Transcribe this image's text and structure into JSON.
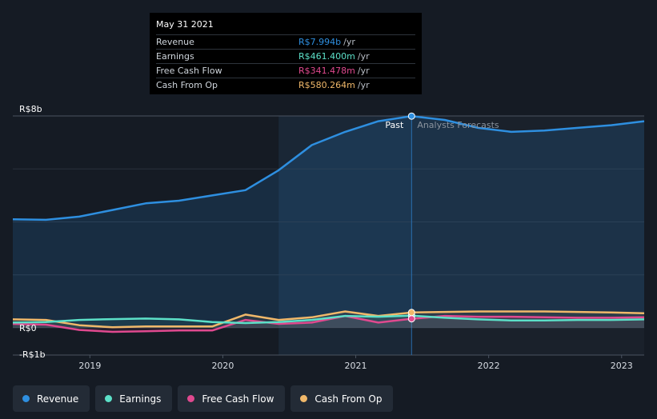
{
  "tooltip": {
    "date": "May 31 2021",
    "rows": [
      {
        "label": "Revenue",
        "value": "R$7.994b",
        "unit": "/yr",
        "color": "#2e8fe0"
      },
      {
        "label": "Earnings",
        "value": "R$461.400m",
        "unit": "/yr",
        "color": "#5ce0c8"
      },
      {
        "label": "Free Cash Flow",
        "value": "R$341.478m",
        "unit": "/yr",
        "color": "#e0498f"
      },
      {
        "label": "Cash From Op",
        "value": "R$580.264m",
        "unit": "/yr",
        "color": "#f0b86a"
      }
    ]
  },
  "legend": [
    {
      "label": "Revenue",
      "color": "#2e8fe0"
    },
    {
      "label": "Earnings",
      "color": "#5ce0c8"
    },
    {
      "label": "Free Cash Flow",
      "color": "#e0498f"
    },
    {
      "label": "Cash From Op",
      "color": "#f0b86a"
    }
  ],
  "chart_data": {
    "type": "line",
    "title": "",
    "xlabel": "",
    "ylabel": "",
    "currency": "R$",
    "unit": "billions",
    "ylim": [
      -1,
      8
    ],
    "xlim": [
      2018.42,
      2023.17
    ],
    "y_tick_labels": [
      {
        "value": 8,
        "label": "R$8b"
      },
      {
        "value": 0,
        "label": "R$0"
      },
      {
        "value": -1,
        "label": "-R$1b"
      }
    ],
    "x_ticks": [
      {
        "value": 2019,
        "label": "2019"
      },
      {
        "value": 2020,
        "label": "2020"
      },
      {
        "value": 2021,
        "label": "2021"
      },
      {
        "value": 2022,
        "label": "2022"
      },
      {
        "value": 2023,
        "label": "2023"
      }
    ],
    "past_label": "Past",
    "forecast_label": "Analysts Forecasts",
    "past_end": 2021.42,
    "highlight_start": 2020.42,
    "series": [
      {
        "name": "Revenue",
        "color": "#2e8fe0",
        "x": [
          2018.42,
          2018.67,
          2018.92,
          2019.17,
          2019.42,
          2019.67,
          2019.92,
          2020.17,
          2020.42,
          2020.67,
          2020.92,
          2021.17,
          2021.42,
          2021.67,
          2021.92,
          2022.17,
          2022.42,
          2022.67,
          2022.92,
          2023.17
        ],
        "y": [
          4.1,
          4.08,
          4.2,
          4.45,
          4.7,
          4.8,
          5.0,
          5.2,
          5.95,
          6.9,
          7.4,
          7.8,
          7.994,
          7.85,
          7.55,
          7.4,
          7.45,
          7.55,
          7.65,
          7.8
        ]
      },
      {
        "name": "Earnings",
        "color": "#5ce0c8",
        "x": [
          2018.42,
          2018.67,
          2018.92,
          2019.17,
          2019.42,
          2019.67,
          2019.92,
          2020.17,
          2020.42,
          2020.67,
          2020.92,
          2021.17,
          2021.42,
          2021.67,
          2021.92,
          2022.17,
          2022.42,
          2022.67,
          2022.92,
          2023.17
        ],
        "y": [
          0.2,
          0.22,
          0.3,
          0.33,
          0.35,
          0.32,
          0.22,
          0.18,
          0.22,
          0.3,
          0.45,
          0.42,
          0.461,
          0.38,
          0.32,
          0.28,
          0.28,
          0.3,
          0.3,
          0.32
        ]
      },
      {
        "name": "Free Cash Flow",
        "color": "#e0498f",
        "x": [
          2018.42,
          2018.67,
          2018.92,
          2019.17,
          2019.42,
          2019.67,
          2019.92,
          2020.17,
          2020.42,
          2020.67,
          2020.92,
          2021.17,
          2021.42,
          2021.67,
          2021.92,
          2022.17,
          2022.42,
          2022.67,
          2022.92,
          2023.17
        ],
        "y": [
          0.15,
          0.12,
          -0.08,
          -0.15,
          -0.13,
          -0.1,
          -0.1,
          0.3,
          0.15,
          0.2,
          0.45,
          0.2,
          0.341,
          0.45,
          0.42,
          0.42,
          0.4,
          0.38,
          0.38,
          0.4
        ]
      },
      {
        "name": "Cash From Op",
        "color": "#f0b86a",
        "x": [
          2018.42,
          2018.67,
          2018.92,
          2019.17,
          2019.42,
          2019.67,
          2019.92,
          2020.17,
          2020.42,
          2020.67,
          2020.92,
          2021.17,
          2021.42,
          2021.67,
          2021.92,
          2022.17,
          2022.42,
          2022.67,
          2022.92,
          2023.17
        ],
        "y": [
          0.32,
          0.3,
          0.1,
          0.02,
          0.05,
          0.05,
          0.05,
          0.5,
          0.3,
          0.4,
          0.62,
          0.45,
          0.58,
          0.6,
          0.62,
          0.62,
          0.62,
          0.6,
          0.58,
          0.55
        ]
      }
    ]
  }
}
